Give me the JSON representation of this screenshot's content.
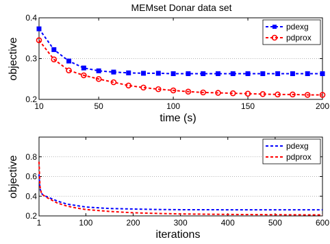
{
  "chart_data": [
    {
      "type": "line",
      "title": "MEMset Donar data set",
      "xlabel": "time (s)",
      "ylabel": "objective",
      "xlim": [
        10,
        200
      ],
      "ylim": [
        0.2,
        0.4
      ],
      "xticks": [
        10,
        50,
        100,
        150,
        200
      ],
      "xtick_labels": [
        "10",
        "50",
        "100",
        "150",
        "200"
      ],
      "yticks": [
        0.2,
        0.3,
        0.4
      ],
      "ytick_labels": [
        "0.2",
        "0.3",
        "0.4"
      ],
      "grid": "horizontal dotted",
      "legend_position": "top-right",
      "series": [
        {
          "name": "pdexg",
          "color": "#0000ff",
          "marker": "square",
          "x": [
            10,
            20,
            30,
            40,
            50,
            60,
            70,
            80,
            90,
            100,
            110,
            120,
            130,
            140,
            150,
            160,
            170,
            180,
            190,
            200
          ],
          "values": [
            0.373,
            0.322,
            0.294,
            0.277,
            0.27,
            0.267,
            0.265,
            0.264,
            0.264,
            0.263,
            0.263,
            0.263,
            0.263,
            0.263,
            0.263,
            0.263,
            0.263,
            0.263,
            0.263,
            0.263
          ]
        },
        {
          "name": "pdprox",
          "color": "#ff0000",
          "marker": "circle",
          "x": [
            10,
            20,
            30,
            40,
            50,
            60,
            70,
            80,
            90,
            100,
            110,
            120,
            130,
            140,
            150,
            160,
            170,
            180,
            190,
            200
          ],
          "values": [
            0.345,
            0.298,
            0.271,
            0.259,
            0.25,
            0.242,
            0.234,
            0.229,
            0.225,
            0.222,
            0.219,
            0.217,
            0.216,
            0.215,
            0.214,
            0.213,
            0.212,
            0.212,
            0.211,
            0.211
          ]
        }
      ]
    },
    {
      "type": "line",
      "title": "",
      "xlabel": "iterations",
      "ylabel": "objective",
      "xlim": [
        1,
        600
      ],
      "ylim": [
        0.2,
        1.0
      ],
      "xticks": [
        1,
        100,
        200,
        300,
        400,
        500,
        600
      ],
      "xtick_labels": [
        "1",
        "100",
        "200",
        "300",
        "400",
        "500",
        "600"
      ],
      "yticks": [
        0.2,
        0.4,
        0.6,
        0.8
      ],
      "ytick_labels": [
        "0.2",
        "0.4",
        "0.6",
        "0.8"
      ],
      "grid": "horizontal dotted",
      "legend_position": "top-right",
      "series": [
        {
          "name": "pdexg",
          "color": "#0000ff",
          "x": [
            1,
            3,
            6,
            10,
            20,
            40,
            60,
            80,
            100,
            150,
            200,
            250,
            300,
            400,
            500,
            600
          ],
          "values": [
            0.62,
            0.48,
            0.43,
            0.41,
            0.39,
            0.35,
            0.32,
            0.305,
            0.29,
            0.275,
            0.27,
            0.265,
            0.263,
            0.262,
            0.262,
            0.262
          ]
        },
        {
          "name": "pdprox",
          "color": "#ff0000",
          "x": [
            1,
            3,
            6,
            10,
            20,
            40,
            60,
            80,
            100,
            150,
            200,
            250,
            300,
            400,
            500,
            600
          ],
          "values": [
            0.75,
            0.5,
            0.43,
            0.41,
            0.38,
            0.33,
            0.3,
            0.28,
            0.265,
            0.245,
            0.232,
            0.225,
            0.22,
            0.215,
            0.212,
            0.21
          ]
        }
      ]
    }
  ]
}
